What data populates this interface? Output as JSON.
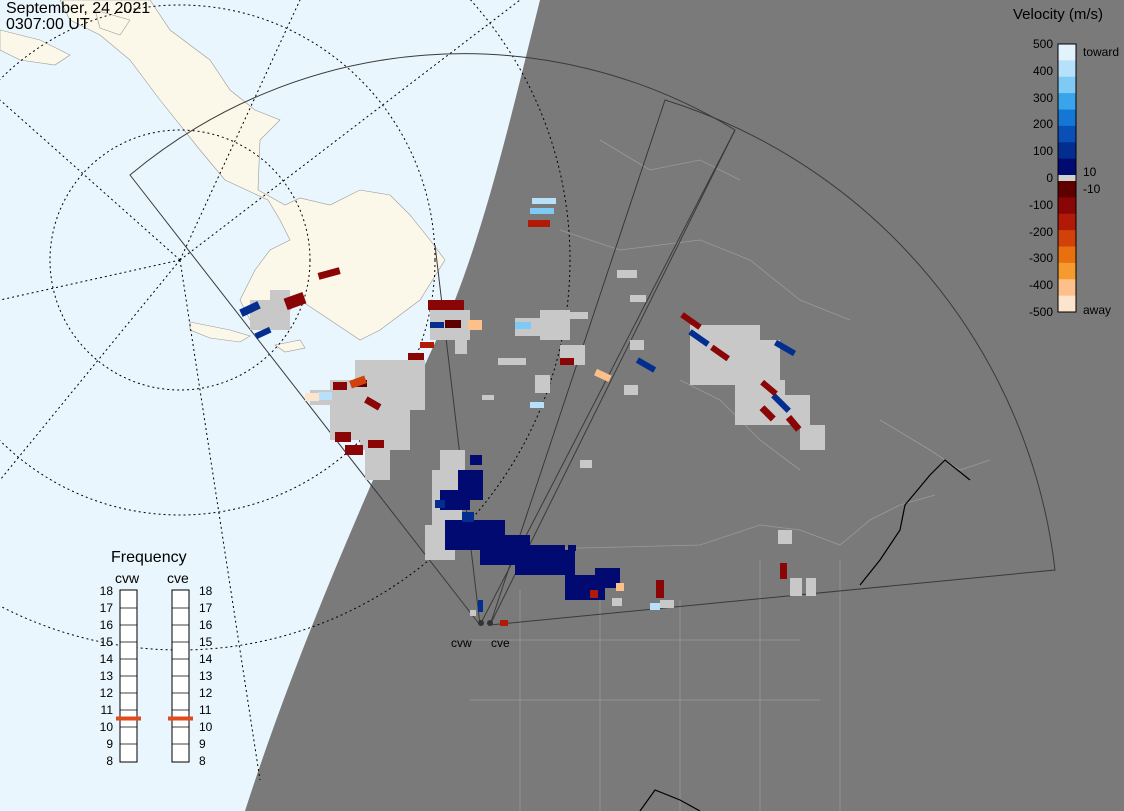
{
  "header": {
    "date": "September, 24 2021",
    "time": "0307:00 UT"
  },
  "colorbar": {
    "title": "Velocity (m/s)",
    "ticks": [
      "500",
      "400",
      "300",
      "200",
      "100",
      "0",
      "-100",
      "-200",
      "-300",
      "-400",
      "-500"
    ],
    "inner_labels": [
      "10",
      "-10"
    ],
    "end_labels": {
      "top": "toward",
      "bottom": "away"
    },
    "colors": {
      "toward": [
        "#e3f3fe",
        "#b7e0fb",
        "#7fc9f5",
        "#3aa4ea",
        "#1477d8",
        "#0a4fb6",
        "#032e90",
        "#000a70"
      ],
      "away": [
        "#5e0000",
        "#8a0505",
        "#b21a08",
        "#d1420b",
        "#e8700e",
        "#f59a2e",
        "#fcc08a",
        "#fde4cc"
      ]
    }
  },
  "frequency": {
    "title": "Frequency",
    "radars": [
      {
        "name": "cvw",
        "selected_mhz": 10.5
      },
      {
        "name": "cve",
        "selected_mhz": 10.5
      }
    ],
    "scale": [
      "18",
      "17",
      "16",
      "15",
      "14",
      "13",
      "12",
      "11",
      "10",
      "9",
      "8"
    ],
    "marker_color": "#e14a1c"
  },
  "stations": [
    {
      "name": "cvw"
    },
    {
      "name": "cve"
    }
  ],
  "map_colors": {
    "ocean": "#e9f6fd",
    "land": "#fbf8e9",
    "night": "#7a7a7a",
    "borders": "#9a9a9a",
    "ground_scatter": "#c8c8c8"
  }
}
